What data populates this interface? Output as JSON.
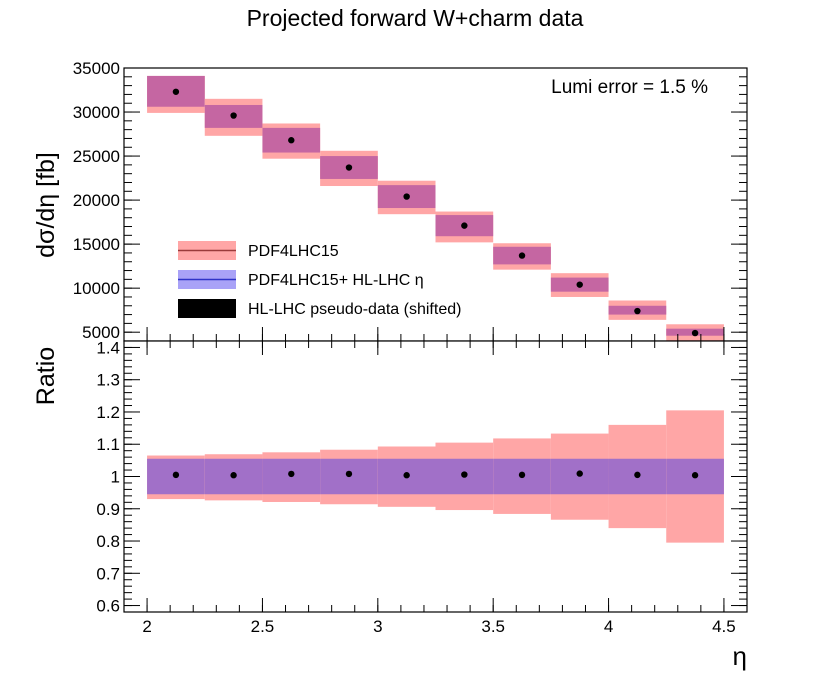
{
  "chart_data": {
    "type": "bar",
    "title": "Projected forward W+charm data",
    "xlabel": "η",
    "xlim": [
      1.9,
      4.6
    ],
    "x_ticks": [
      "2",
      "2.5",
      "3",
      "3.5",
      "4",
      "4.5"
    ],
    "x_tick_values": [
      2,
      2.5,
      3,
      3.5,
      4,
      4.5
    ],
    "bin_edges": [
      2.0,
      2.25,
      2.5,
      2.75,
      3.0,
      3.25,
      3.5,
      3.75,
      4.0,
      4.25,
      4.5
    ],
    "colors": {
      "pdf4lhc15": "#ffa6a6",
      "hl_lhc": "#9d8cf0",
      "overlap": "#c566a2",
      "ratio_overlap": "#a170c8",
      "data": "#000000"
    },
    "annotation": "Lumi error = 1.5 %",
    "legend": [
      {
        "label": "PDF4LHC15",
        "style": "band-line"
      },
      {
        "label": "PDF4LHC15+ HL-LHC η",
        "style": "band-line-blue"
      },
      {
        "label": "HL-LHC pseudo-data (shifted)",
        "style": "solid"
      }
    ],
    "top": {
      "ylabel": "dσ/dη [fb]",
      "ylim": [
        4000,
        35000
      ],
      "y_ticks": [
        "5000",
        "10000",
        "15000",
        "20000",
        "25000",
        "30000",
        "35000"
      ],
      "y_tick_values": [
        5000,
        10000,
        15000,
        20000,
        25000,
        30000,
        35000
      ],
      "series": [
        {
          "name": "PDF4LHC15",
          "lo": [
            29900,
            27300,
            24700,
            21600,
            18400,
            15200,
            12100,
            9000,
            6400,
            3900
          ],
          "hi": [
            34100,
            31500,
            28700,
            25600,
            22200,
            18700,
            15100,
            11700,
            8600,
            5900
          ]
        },
        {
          "name": "PDF4LHC15+ HL-LHC η",
          "lo": [
            30600,
            28200,
            25400,
            22400,
            19100,
            15900,
            12700,
            9600,
            7000,
            4600
          ],
          "hi": [
            34100,
            30800,
            28200,
            25000,
            21700,
            18300,
            14700,
            11200,
            8000,
            5400
          ]
        },
        {
          "name": "HL-LHC pseudo-data (shifted)",
          "x": [
            2.125,
            2.375,
            2.625,
            2.875,
            3.125,
            3.375,
            3.625,
            3.875,
            4.125,
            4.375
          ],
          "y": [
            32300,
            29600,
            26800,
            23700,
            20400,
            17100,
            13700,
            10400,
            7400,
            4900
          ]
        }
      ]
    },
    "ratio": {
      "ylabel": "Ratio",
      "ylim": [
        0.58,
        1.42
      ],
      "y_ticks": [
        "0.6",
        "0.7",
        "0.8",
        "0.9",
        "1",
        "1.1",
        "1.2",
        "1.3",
        "1.4"
      ],
      "y_tick_values": [
        0.6,
        0.7,
        0.8,
        0.9,
        1.0,
        1.1,
        1.2,
        1.3,
        1.4
      ],
      "series": [
        {
          "name": "PDF4LHC15",
          "lo": [
            0.93,
            0.926,
            0.921,
            0.914,
            0.906,
            0.896,
            0.884,
            0.866,
            0.84,
            0.795
          ],
          "hi": [
            1.065,
            1.069,
            1.075,
            1.083,
            1.093,
            1.105,
            1.118,
            1.133,
            1.16,
            1.205
          ]
        },
        {
          "name": "PDF4LHC15+ HL-LHC η",
          "lo": [
            0.945,
            0.945,
            0.945,
            0.945,
            0.945,
            0.945,
            0.945,
            0.945,
            0.945,
            0.945
          ],
          "hi": [
            1.055,
            1.055,
            1.055,
            1.055,
            1.055,
            1.055,
            1.055,
            1.055,
            1.055,
            1.055
          ]
        },
        {
          "name": "HL-LHC pseudo-data (shifted)",
          "x": [
            2.125,
            2.375,
            2.625,
            2.875,
            3.125,
            3.375,
            3.625,
            3.875,
            4.125,
            4.375
          ],
          "y": [
            1.005,
            1.004,
            1.008,
            1.008,
            1.004,
            1.006,
            1.005,
            1.009,
            1.005,
            1.004
          ]
        }
      ]
    }
  }
}
